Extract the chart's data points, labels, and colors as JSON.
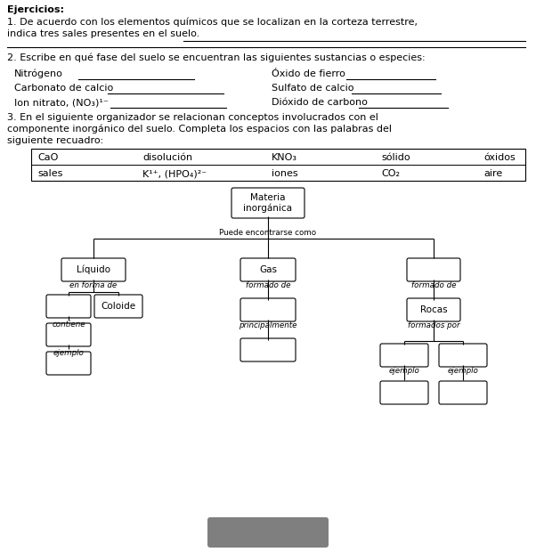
{
  "bg_color": "#ffffff",
  "text_color": "#000000",
  "title": "Ejercicios:",
  "q1_line1": "1. De acuerdo con los elementos químicos que se localizan en la corteza terrestre,",
  "q1_line2": "indica tres sales presentes en el suelo.",
  "q2_header": "2. Escribe en qué fase del suelo se encuentran las siguientes sustancias o especies:",
  "q2_items_left": [
    "Nitrógeno",
    "Carbonato de calcio",
    "Ion nitrato, (NO₃)¹⁻"
  ],
  "q2_items_right": [
    "Óxido de fierro",
    "Sulfato de calcio",
    "Dióxido de carbono"
  ],
  "q3_header_line1": "3. En el siguiente organizador se relacionan conceptos involucrados con el",
  "q3_header_line2": "componente inorgánico del suelo. Completa los espacios con las palabras del",
  "q3_header_line3": "siguiente recuadro:",
  "box_row1": [
    "CaO",
    "disolución",
    "KNO₃",
    "sólido",
    "óxidos"
  ],
  "box_row2": [
    "sales",
    "K¹⁺, (HPO₄)²⁻",
    "iones",
    "CO₂",
    "aire"
  ],
  "node_materia": "Materia\ninorgánica",
  "label_puede": "Puede encontrarse como",
  "node_liquido": "Líquido",
  "node_gas": "Gas",
  "label_en_forma": "en forma de",
  "label_formado_de_gas": "formado de",
  "label_formado_de_right": "formado de",
  "node_coloide": "Coloide",
  "label_contiene": "contiene",
  "label_principalmente": "principalmente",
  "node_rocas": "Rocas",
  "label_formados_por": "formados por",
  "label_ejemplo_left": "ejemplo",
  "label_ejemplo_r1": "ejemplo",
  "label_ejemplo_r2": "ejemplo",
  "gray_box_color": "#7f7f7f"
}
